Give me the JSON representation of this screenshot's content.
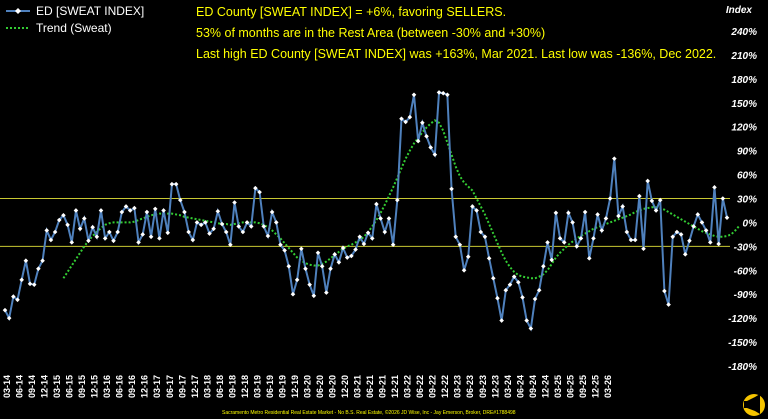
{
  "chart_data": {
    "type": "line",
    "legend": {
      "placement": "top-left",
      "entries": [
        "ED [SWEAT INDEX]",
        "Trend (Sweat)"
      ]
    },
    "annotations": [
      "ED County [SWEAT INDEX] = +6%, favoring SELLERS.",
      "53% of months are in the Rest Area (between -30% and +30%)",
      "Last high ED County [SWEAT INDEX] was +163%, Mar 2021. Last low was -136%, Dec 2022."
    ],
    "ylabel": "Index",
    "ylim": [
      -180,
      250
    ],
    "yticks": [
      "240%",
      "210%",
      "180%",
      "150%",
      "120%",
      "90%",
      "60%",
      "30%",
      "0%",
      "-30%",
      "-60%",
      "-90%",
      "-120%",
      "-150%",
      "-180%"
    ],
    "ytick_values": [
      240,
      210,
      180,
      150,
      120,
      90,
      60,
      30,
      0,
      -30,
      -60,
      -90,
      -120,
      -150,
      -180
    ],
    "reference_lines": [
      30,
      -30
    ],
    "x_tick_labels": [
      "03-14",
      "06-14",
      "09-14",
      "12-14",
      "03-15",
      "06-15",
      "09-15",
      "12-15",
      "03-16",
      "06-16",
      "09-16",
      "12-16",
      "03-17",
      "06-17",
      "09-17",
      "12-17",
      "03-18",
      "06-18",
      "09-18",
      "12-18",
      "03-19",
      "06-19",
      "09-19",
      "12-19",
      "03-20",
      "06-20",
      "09-20",
      "12-20",
      "03-21",
      "06-21",
      "09-21",
      "12-21",
      "03-22",
      "06-22",
      "09-22",
      "12-22",
      "03-23",
      "06-23",
      "09-23",
      "12-23",
      "03-24",
      "06-24",
      "09-24",
      "12-24",
      "03-25",
      "06-25",
      "09-25",
      "12-25",
      "03-26"
    ],
    "series": [
      {
        "name": "ED [SWEAT INDEX]",
        "color": "#4f81bd",
        "marker_color": "#ffffff",
        "values": [
          -110,
          -120,
          -93,
          -97,
          -72,
          -48,
          -77,
          -78,
          -58,
          -48,
          -10,
          -22,
          -12,
          3,
          9,
          -3,
          -25,
          15,
          -8,
          5,
          -23,
          -6,
          -18,
          15,
          -20,
          -12,
          -23,
          -12,
          13,
          20,
          15,
          18,
          -25,
          -15,
          13,
          -18,
          17,
          -20,
          15,
          -13,
          48,
          48,
          28,
          13,
          -12,
          -22,
          0,
          -3,
          0,
          -14,
          -8,
          14,
          -2,
          -12,
          -28,
          25,
          -5,
          -12,
          0,
          -5,
          43,
          38,
          -5,
          -17,
          13,
          0,
          -28,
          -35,
          -55,
          -90,
          -72,
          -33,
          -58,
          -78,
          -92,
          -38,
          -55,
          -88,
          -58,
          -40,
          -50,
          -32,
          -44,
          -42,
          -34,
          -18,
          -27,
          -13,
          -20,
          23,
          5,
          -12,
          5,
          -28,
          28,
          130,
          126,
          132,
          160,
          102,
          125,
          108,
          94,
          85,
          163,
          162,
          160,
          42,
          -18,
          -28,
          -60,
          -43,
          20,
          15,
          -12,
          -18,
          -45,
          -70,
          -95,
          -123,
          -85,
          -78,
          -68,
          -75,
          -94,
          -123,
          -133,
          -96,
          -85,
          -55,
          -25,
          -47,
          12,
          -20,
          -25,
          12,
          0,
          -30,
          -20,
          13,
          -45,
          -20,
          10,
          -10,
          5,
          30,
          80,
          8,
          20,
          -12,
          -22,
          -22,
          33,
          -33,
          52,
          27,
          15,
          28,
          -86,
          -103,
          -18,
          -12,
          -15,
          -40,
          -23,
          -5,
          10,
          0,
          -10,
          -25,
          44,
          -27,
          30,
          6
        ]
      },
      {
        "name": "Trend (Sweat)",
        "color": "#33cc33",
        "values": [
          null,
          null,
          null,
          null,
          null,
          null,
          null,
          null,
          null,
          null,
          null,
          null,
          null,
          null,
          -70,
          -62,
          -54,
          -46,
          -38,
          -30,
          -23,
          -17,
          -12,
          -7,
          -3,
          -1,
          0,
          0,
          0,
          0,
          0,
          1,
          3,
          5,
          7,
          9,
          10,
          11,
          11,
          11,
          11,
          10,
          9,
          7,
          6,
          5,
          4,
          3,
          2,
          1,
          0,
          -1,
          -2,
          -2,
          -3,
          -2,
          -1,
          0,
          0,
          0,
          0,
          -1,
          -3,
          -6,
          -10,
          -15,
          -20,
          -26,
          -32,
          -38,
          -44,
          -48,
          -51,
          -53,
          -54,
          -54,
          -52,
          -49,
          -45,
          -41,
          -37,
          -33,
          -30,
          -28,
          -25,
          -22,
          -18,
          -12,
          -5,
          3,
          12,
          22,
          33,
          44,
          56,
          68,
          80,
          90,
          99,
          106,
          113,
          119,
          124,
          128,
          125,
          115,
          100,
          85,
          70,
          58,
          50,
          45,
          40,
          30,
          20,
          10,
          -2,
          -14,
          -26,
          -38,
          -48,
          -56,
          -62,
          -66,
          -68,
          -69,
          -70,
          -70,
          -68,
          -65,
          -60,
          -52,
          -44,
          -38,
          -33,
          -28,
          -24,
          -20,
          -17,
          -14,
          -11,
          -8,
          -6,
          -4,
          -2,
          0,
          2,
          4,
          6,
          8,
          10,
          13,
          15,
          17,
          18,
          19,
          19,
          18,
          16,
          13,
          10,
          7,
          4,
          1,
          -2,
          -5,
          -8,
          -11,
          -13,
          -15,
          -17,
          -18,
          -18,
          -17,
          -15,
          -10,
          -4
        ]
      }
    ]
  },
  "footer_text": "Sacramento Metro Residential Real Estate Market - No B.S. Real Estate, ©2026 JD Wise, Inc - Jay Emerson, Broker, DRE#1788498",
  "colors": {
    "background": "#000000",
    "annotation_text": "#ffff00",
    "axis_text": "#ffffff",
    "reference_line": "#c8c832",
    "logo": "#f5c400"
  },
  "icons": {
    "logo": "bullhorn-logo-icon"
  }
}
